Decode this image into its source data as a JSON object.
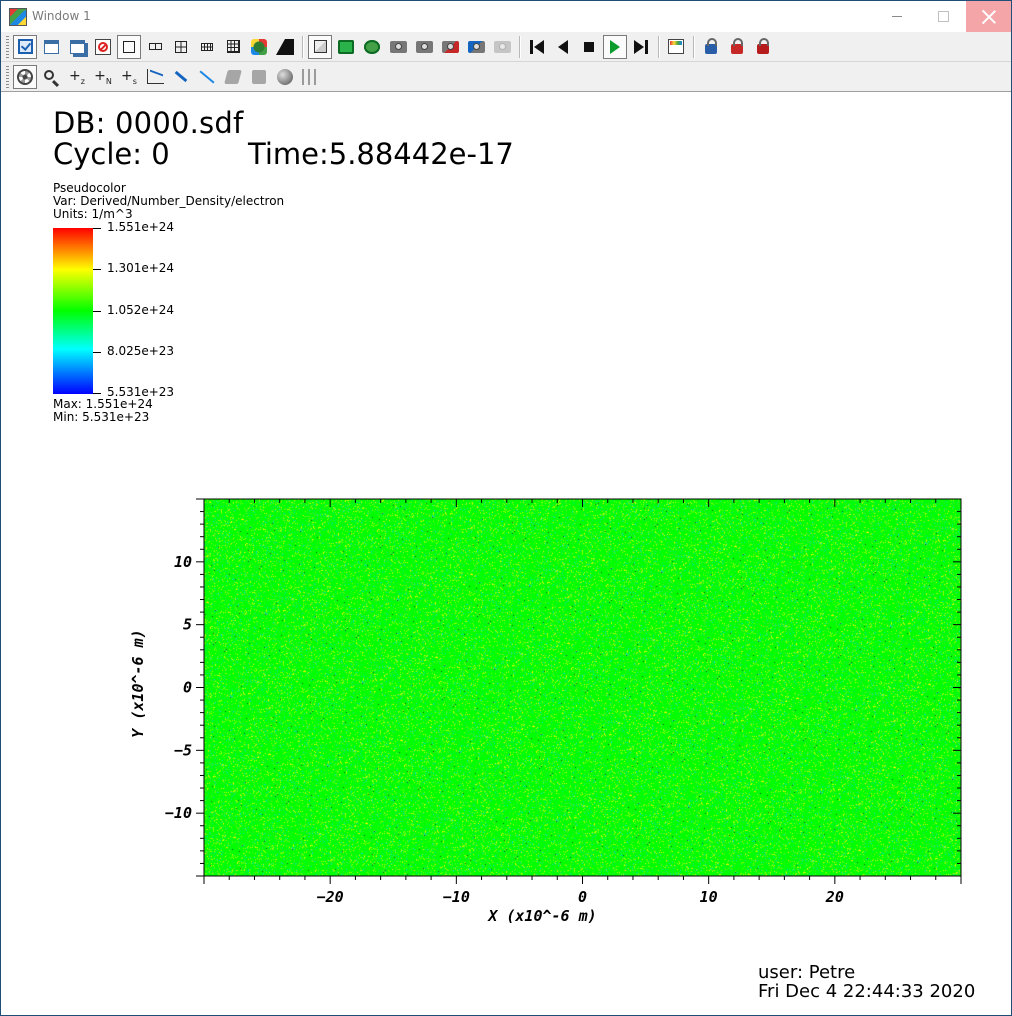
{
  "window": {
    "title": "Window 1",
    "controls": [
      "minimize",
      "maximize",
      "close"
    ]
  },
  "toolbar_top": {
    "groups": [
      [
        "checkbox-window-icon",
        "new-window-icon",
        "clone-window-icon",
        "delete-window-icon"
      ],
      [
        "layout-1x1-icon",
        "layout-1x2-icon",
        "layout-2x2-icon",
        "layout-2x4-icon",
        "layout-3x3-icon",
        "transform-icon",
        "spin-icon"
      ],
      [
        "view-3d-icon",
        "green-tool-1-icon",
        "green-tool-2-icon",
        "camera-1-icon",
        "camera-2-icon",
        "camera-3-icon",
        "camera-4-icon",
        "camera-disabled-icon"
      ],
      [
        "step-back-icon",
        "play-back-icon",
        "stop-icon",
        "play-icon",
        "step-forward-icon"
      ],
      [
        "chart-icon"
      ],
      [
        "lock-view-icon",
        "lock-time-icon",
        "lock-tools-icon"
      ]
    ]
  },
  "toolbar_bottom": {
    "items": [
      "navigate-icon",
      "zoom-icon",
      "zone-pick-icon",
      "node-pick-icon",
      "spreadsheet-pick-icon",
      "lineout-icon",
      "pick-icon",
      "line-icon",
      "plane-icon",
      "box-icon",
      "sphere-icon",
      "axis-restrict-icon"
    ],
    "labels": {
      "z": "z",
      "n": "N",
      "s": "s"
    }
  },
  "annotations": {
    "db": "DB: 0000.sdf",
    "cycle": "Cycle: 0",
    "time": "Time:5.88442e-17",
    "user": "user: Petre",
    "date": "Fri Dec  4 22:44:33 2020"
  },
  "legend": {
    "title": "Pseudocolor",
    "var": "Var: Derived/Number_Density/electron",
    "units": "Units:  1/m^3",
    "ticks": [
      "1.551e+24",
      "1.301e+24",
      "1.052e+24",
      "8.025e+23",
      "5.531e+23"
    ],
    "max": "Max:  1.551e+24",
    "min": "Min:  5.531e+23",
    "colors": [
      "#0000ff",
      "#00ffff",
      "#00ff00",
      "#ffff00",
      "#ff0000"
    ]
  },
  "chart_data": {
    "type": "heatmap",
    "xlabel": "X (x10^-6 m)",
    "ylabel": "Y (x10^-6 m)",
    "xlim": [
      -30,
      30
    ],
    "ylim": [
      -15,
      15
    ],
    "xticks": [
      -20,
      -10,
      0,
      10,
      20
    ],
    "yticks": [
      -10,
      -5,
      0,
      5,
      10
    ],
    "xtick_labels": [
      "−20",
      "−10",
      "0",
      "10",
      "20"
    ],
    "ytick_labels": [
      "−10",
      "−5",
      "0",
      "5",
      "10"
    ],
    "dominant_color": "#00ff00",
    "value_range": [
      5.531e+23,
      1.551e+24
    ]
  }
}
